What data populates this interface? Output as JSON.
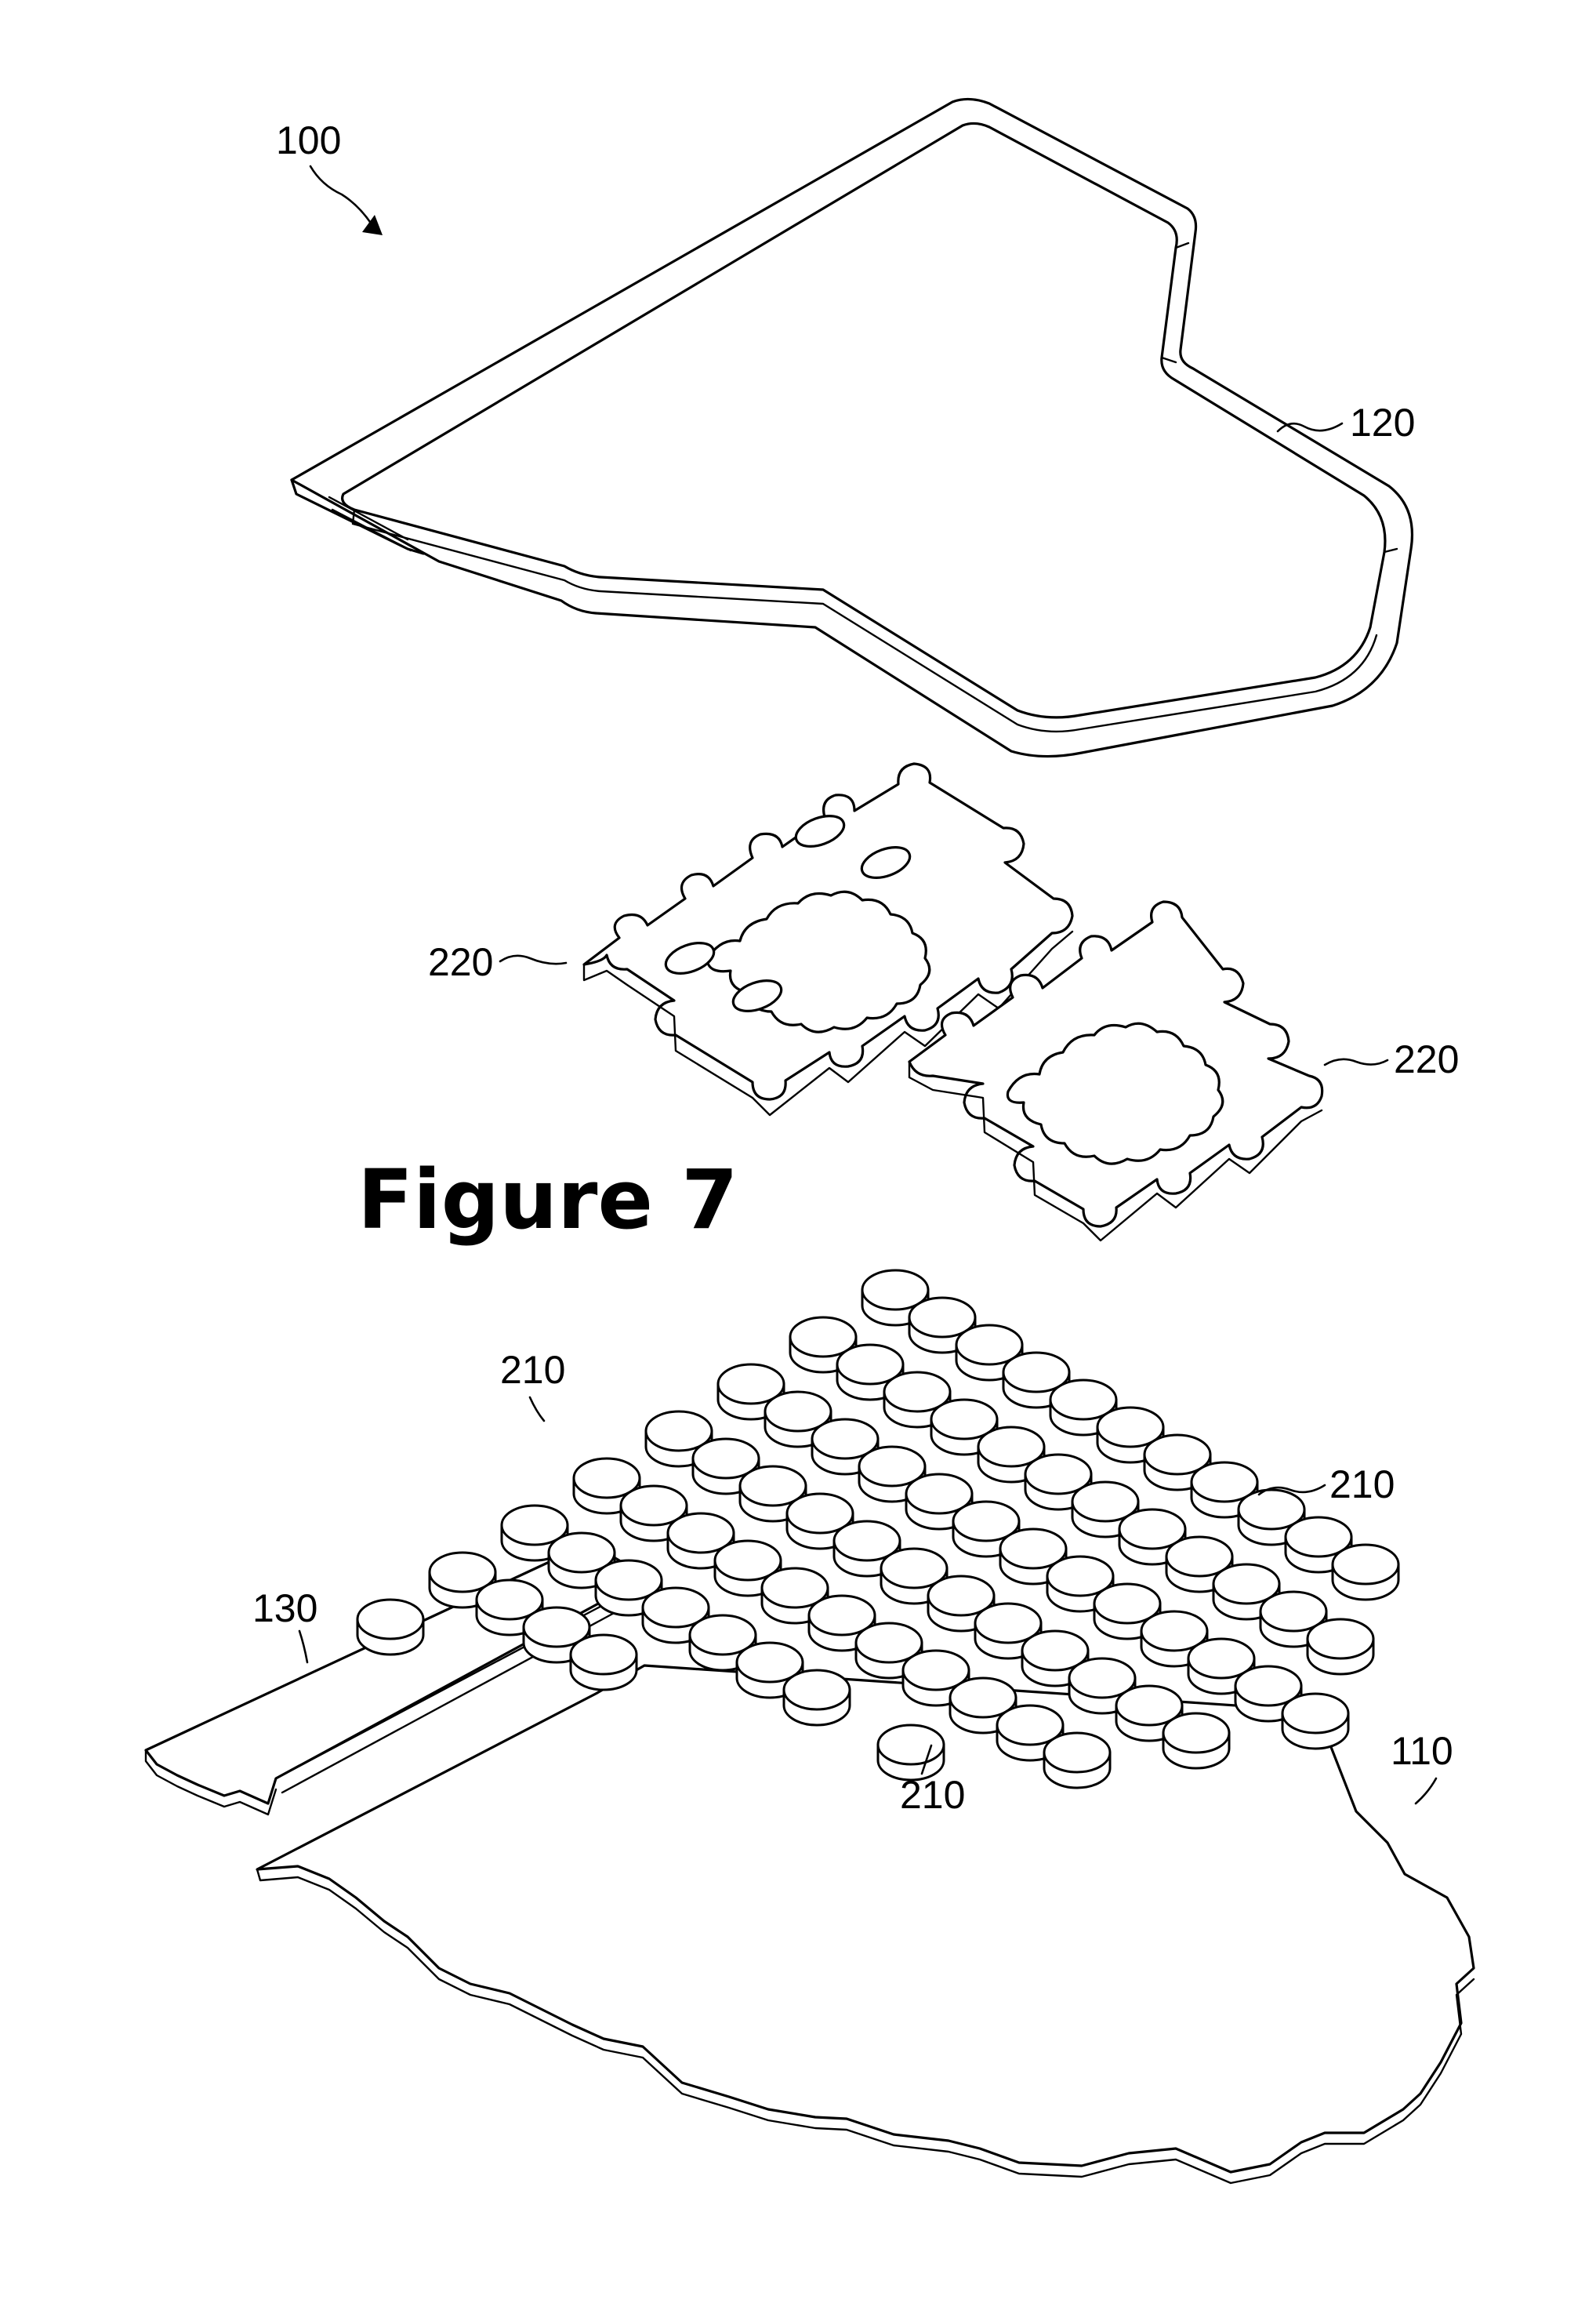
{
  "figure": {
    "title": "Figure 7"
  },
  "labels": {
    "assembly": "100",
    "cover": "120",
    "base": "110",
    "strip": "130",
    "frame_left": "220",
    "frame_right": "220",
    "tile_upper_left": "210",
    "tile_right": "210",
    "tile_lower": "210"
  }
}
